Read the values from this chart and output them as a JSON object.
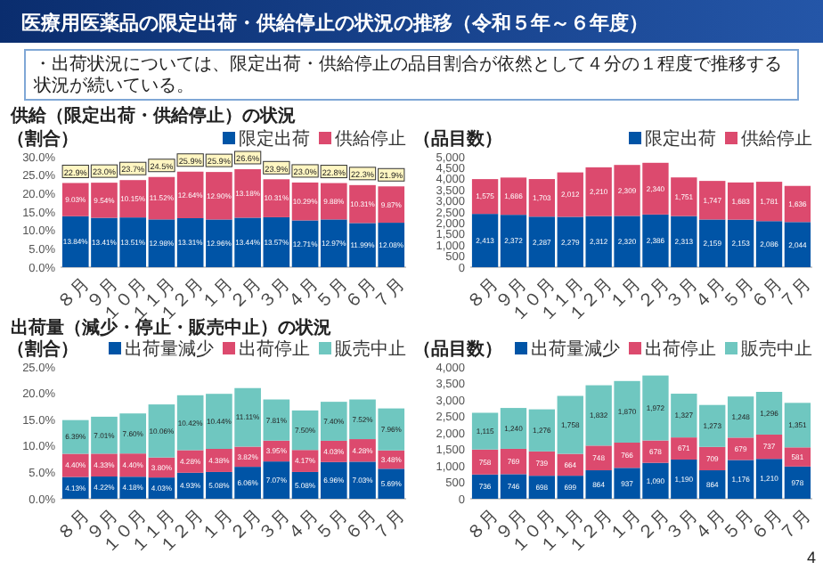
{
  "chart_data": [
    {
      "type": "bar",
      "stacked": true,
      "title": "医療用医薬品の限定出荷・供給停止の状況の推移（令和５年～６年度）",
      "subtitle": "供給（限定出荷・供給停止）の状況",
      "annotations": [
        "・出荷状況については、限定出荷・供給停止の品目割合が依然として４分の１程度で推移する状況が続いている。"
      ],
      "ylabel": "（割合）",
      "legend": "top",
      "categories": [
        "８月",
        "９月",
        "１０月",
        "１１月",
        "１２月",
        "１月",
        "２月",
        "３月",
        "４月",
        "５月",
        "６月",
        "７月"
      ],
      "series": [
        {
          "name": "限定出荷",
          "color": "#0054a6",
          "values": [
            13.84,
            13.41,
            13.51,
            12.98,
            13.31,
            12.96,
            13.44,
            13.57,
            12.71,
            12.97,
            11.99,
            12.08
          ],
          "value_labels": [
            "13.84%",
            "13.41%",
            "13.51%",
            "12.98%",
            "13.31%",
            "12.96%",
            "13.44%",
            "13.57%",
            "12.71%",
            "12.97%",
            "11.99%",
            "12.08%"
          ]
        },
        {
          "name": "供給停止",
          "color": "#dc4a6e",
          "values": [
            9.03,
            9.54,
            10.15,
            11.52,
            12.64,
            12.9,
            13.18,
            10.31,
            10.29,
            9.88,
            10.31,
            9.87
          ],
          "value_labels": [
            "9.03%",
            "9.54%",
            "10.15%",
            "11.52%",
            "12.64%",
            "12.90%",
            "13.18%",
            "10.31%",
            "10.29%",
            "9.88%",
            "10.31%",
            "9.87%"
          ]
        }
      ],
      "totals": [
        "22.9%",
        "23.0%",
        "23.7%",
        "24.5%",
        "25.9%",
        "25.9%",
        "26.6%",
        "23.9%",
        "23.0%",
        "22.8%",
        "22.3%",
        "21.9%"
      ],
      "ylim": [
        0,
        30
      ],
      "yticks": [
        {
          "value": 0,
          "label": "0.0%"
        },
        {
          "value": 5,
          "label": "5.0%"
        },
        {
          "value": 10,
          "label": "10.0%"
        },
        {
          "value": 15,
          "label": "15.0%"
        },
        {
          "value": 20,
          "label": "20.0%"
        },
        {
          "value": 25,
          "label": "25.0%"
        },
        {
          "value": 30,
          "label": "30.0%"
        }
      ]
    },
    {
      "type": "bar",
      "stacked": true,
      "ylabel": "（品目数）",
      "legend": "top",
      "categories": [
        "８月",
        "９月",
        "１０月",
        "１１月",
        "１２月",
        "１月",
        "２月",
        "３月",
        "４月",
        "５月",
        "６月",
        "７月"
      ],
      "series": [
        {
          "name": "限定出荷",
          "color": "#0054a6",
          "values": [
            2413,
            2372,
            2287,
            2279,
            2312,
            2320,
            2386,
            2313,
            2159,
            2153,
            2086,
            2044
          ],
          "value_labels": [
            "2,413",
            "2,372",
            "2,287",
            "2,279",
            "2,312",
            "2,320",
            "2,386",
            "2,313",
            "2,159",
            "2,153",
            "2,086",
            "2,044"
          ]
        },
        {
          "name": "供給停止",
          "color": "#dc4a6e",
          "values": [
            1575,
            1686,
            1703,
            2012,
            2210,
            2309,
            2340,
            1751,
            1747,
            1683,
            1781,
            1636
          ],
          "value_labels": [
            "1,575",
            "1,686",
            "1,703",
            "2,012",
            "2,210",
            "2,309",
            "2,340",
            "1,751",
            "1,747",
            "1,683",
            "1,781",
            "1,636"
          ]
        }
      ],
      "ylim": [
        0,
        5000
      ],
      "yticks": [
        {
          "value": 0,
          "label": "0"
        },
        {
          "value": 500,
          "label": "500"
        },
        {
          "value": 1000,
          "label": "1,000"
        },
        {
          "value": 1500,
          "label": "1,500"
        },
        {
          "value": 2000,
          "label": "2,000"
        },
        {
          "value": 2500,
          "label": "2,500"
        },
        {
          "value": 3000,
          "label": "3,000"
        },
        {
          "value": 3500,
          "label": "3,500"
        },
        {
          "value": 4000,
          "label": "4,000"
        },
        {
          "value": 4500,
          "label": "4,500"
        },
        {
          "value": 5000,
          "label": "5,000"
        }
      ]
    },
    {
      "type": "bar",
      "stacked": true,
      "subtitle": "出荷量（減少・停止・販売中止）の状況",
      "ylabel": "（割合）",
      "legend": "top",
      "categories": [
        "８月",
        "９月",
        "１０月",
        "１１月",
        "１２月",
        "１月",
        "２月",
        "３月",
        "４月",
        "５月",
        "６月",
        "７月"
      ],
      "series": [
        {
          "name": "出荷量減少",
          "color": "#0054a6",
          "values": [
            4.13,
            4.22,
            4.18,
            4.03,
            4.93,
            5.08,
            6.06,
            7.07,
            5.08,
            6.96,
            7.03,
            5.69
          ],
          "value_labels": [
            "4.13%",
            "4.22%",
            "4.18%",
            "4.03%",
            "4.93%",
            "5.08%",
            "6.06%",
            "7.07%",
            "5.08%",
            "6.96%",
            "7.03%",
            "5.69%"
          ]
        },
        {
          "name": "出荷停止",
          "color": "#dc4a6e",
          "values": [
            4.4,
            4.33,
            4.4,
            3.8,
            4.28,
            4.38,
            3.82,
            3.95,
            4.17,
            4.03,
            4.28,
            3.48
          ],
          "value_labels": [
            "4.40%",
            "4.33%",
            "4.40%",
            "3.80%",
            "4.28%",
            "4.38%",
            "3.82%",
            "3.95%",
            "4.17%",
            "4.03%",
            "4.28%",
            "3.48%"
          ]
        },
        {
          "name": "販売中止",
          "color": "#6fc7c0",
          "values": [
            6.39,
            7.01,
            7.6,
            10.06,
            10.42,
            10.44,
            11.11,
            7.81,
            7.5,
            7.4,
            7.52,
            7.96
          ],
          "value_labels": [
            "6.39%",
            "7.01%",
            "7.60%",
            "10.06%",
            "10.42%",
            "10.44%",
            "11.11%",
            "7.81%",
            "7.50%",
            "7.40%",
            "7.52%",
            "7.96%"
          ]
        }
      ],
      "ylim": [
        0,
        25
      ],
      "yticks": [
        {
          "value": 0,
          "label": "0.0%"
        },
        {
          "value": 5,
          "label": "5.0%"
        },
        {
          "value": 10,
          "label": "10.0%"
        },
        {
          "value": 15,
          "label": "15.0%"
        },
        {
          "value": 20,
          "label": "20.0%"
        },
        {
          "value": 25,
          "label": "25.0%"
        }
      ]
    },
    {
      "type": "bar",
      "stacked": true,
      "ylabel": "（品目数）",
      "legend": "top",
      "annotations": [
        "4"
      ],
      "categories": [
        "８月",
        "９月",
        "１０月",
        "１１月",
        "１２月",
        "１月",
        "２月",
        "３月",
        "４月",
        "５月",
        "６月",
        "７月"
      ],
      "series": [
        {
          "name": "出荷量減少",
          "color": "#0054a6",
          "values": [
            736,
            746,
            698,
            699,
            864,
            937,
            1090,
            1190,
            864,
            1176,
            1210,
            978
          ],
          "value_labels": [
            "736",
            "746",
            "698",
            "699",
            "864",
            "937",
            "1,090",
            "1,190",
            "864",
            "1,176",
            "1,210",
            "978"
          ]
        },
        {
          "name": "出荷停止",
          "color": "#dc4a6e",
          "values": [
            758,
            769,
            739,
            664,
            748,
            766,
            678,
            671,
            709,
            679,
            737,
            581
          ],
          "value_labels": [
            "758",
            "769",
            "739",
            "664",
            "748",
            "766",
            "678",
            "671",
            "709",
            "679",
            "737",
            "581"
          ]
        },
        {
          "name": "販売中止",
          "color": "#6fc7c0",
          "values": [
            1115,
            1240,
            1276,
            1758,
            1832,
            1870,
            1972,
            1327,
            1273,
            1248,
            1296,
            1351
          ],
          "value_labels": [
            "1,115",
            "1,240",
            "1,276",
            "1,758",
            "1,832",
            "1,870",
            "1,972",
            "1,327",
            "1,273",
            "1,248",
            "1,296",
            "1,351"
          ]
        }
      ],
      "ylim": [
        0,
        4000
      ],
      "yticks": [
        {
          "value": 0,
          "label": "0"
        },
        {
          "value": 500,
          "label": "500"
        },
        {
          "value": 1000,
          "label": "1,000"
        },
        {
          "value": 1500,
          "label": "1,500"
        },
        {
          "value": 2000,
          "label": "2,000"
        },
        {
          "value": 2500,
          "label": "2,500"
        },
        {
          "value": 3000,
          "label": "3,000"
        },
        {
          "value": 3500,
          "label": "3,500"
        },
        {
          "value": 4000,
          "label": "4,000"
        }
      ]
    }
  ]
}
